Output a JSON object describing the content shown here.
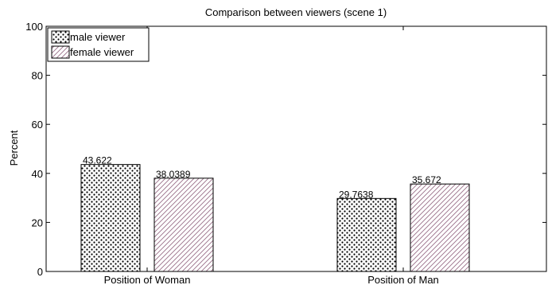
{
  "chart_data": {
    "type": "bar",
    "title": "Comparison between viewers (scene 1)",
    "xlabel": "",
    "ylabel": "Percent",
    "ylim": [
      0,
      100
    ],
    "yticks": [
      "0",
      "20",
      "40",
      "60",
      "80",
      "100"
    ],
    "grid": false,
    "legend_position": "top-left",
    "categories": [
      "Position of Woman",
      "Position of Man"
    ],
    "series": [
      {
        "name": "male viewer",
        "pattern": "dots",
        "values": [
          43.622,
          29.7638
        ],
        "labels": [
          "43.622",
          "29.7638"
        ]
      },
      {
        "name": "female viewer",
        "pattern": "diagonal-hatch",
        "hatch_color": "#c8a0b8",
        "values": [
          38.0389,
          35.672
        ],
        "labels": [
          "38.0389",
          "35.672"
        ]
      }
    ]
  }
}
